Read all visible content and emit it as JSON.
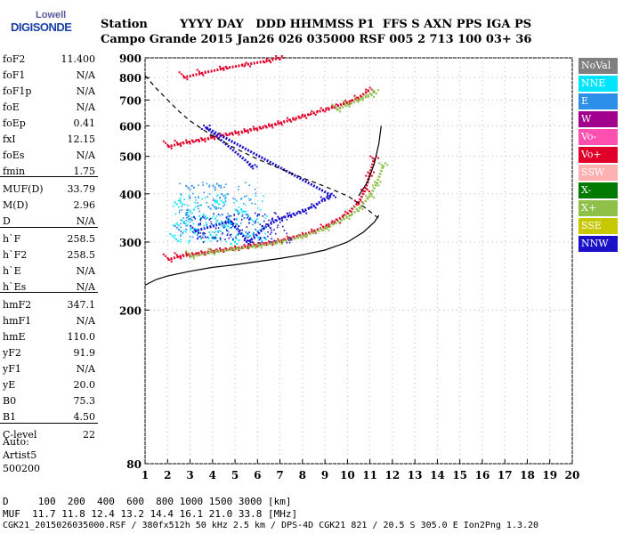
{
  "logo": {
    "top": "Lowell",
    "main": "DIGISONDE"
  },
  "header": {
    "row1": "Station        YYYY DAY   DDD HHMMSS P1  FFS S AXN PPS IGA PS",
    "row2": "Campo Grande 2015 Jan26 026 035000 RSF 005 2 713 100 03+ 36"
  },
  "params": [
    {
      "name": "foF2",
      "value": "11.400"
    },
    {
      "name": "foF1",
      "value": "N/A"
    },
    {
      "name": "foF1p",
      "value": "N/A"
    },
    {
      "name": "foE",
      "value": "N/A"
    },
    {
      "name": "foEp",
      "value": "0.41"
    },
    {
      "name": "fxI",
      "value": "12.15"
    },
    {
      "name": "foEs",
      "value": "N/A"
    },
    {
      "name": "fmin",
      "value": "1.75"
    },
    {
      "name": "MUF(D)",
      "value": "33.79"
    },
    {
      "name": "M(D)",
      "value": "2.96"
    },
    {
      "name": "D",
      "value": "N/A"
    },
    {
      "name": "h`F",
      "value": "258.5"
    },
    {
      "name": "h`F2",
      "value": "258.5"
    },
    {
      "name": "h`E",
      "value": "N/A"
    },
    {
      "name": "h`Es",
      "value": "N/A"
    },
    {
      "name": "hmF2",
      "value": "347.1"
    },
    {
      "name": "hmF1",
      "value": "N/A"
    },
    {
      "name": "hmE",
      "value": "110.0"
    },
    {
      "name": "yF2",
      "value": "91.9"
    },
    {
      "name": "yF1",
      "value": "N/A"
    },
    {
      "name": "yE",
      "value": "20.0"
    },
    {
      "name": "B0",
      "value": "75.3"
    },
    {
      "name": "B1",
      "value": "4.50"
    },
    {
      "name": "C-level",
      "value": "22"
    }
  ],
  "autoscaling": {
    "line1": "Auto:",
    "line2": "Artist5",
    "line3": "500200"
  },
  "footer": {
    "d_row": "D     100  200  400  600  800 1000 1500 3000 [km]",
    "muf_row": "MUF  11.7 11.8 12.4 13.2 14.4 16.1 21.0 33.8 [MHz]",
    "file_row": "CGK21_2015026035000.RSF / 380fx512h 50 kHz 2.5 km / DPS-4D CGK21 821 / 20.5 S 305.0 E Ion2Png 1.3.20"
  },
  "legend": [
    {
      "label": "NoVal",
      "color": "#808080",
      "text_color": "#ffffff"
    },
    {
      "label": "NNE",
      "color": "#00e5ff",
      "text_color": "#ffffff"
    },
    {
      "label": "E",
      "color": "#2d8fe8",
      "text_color": "#ffffff"
    },
    {
      "label": "W",
      "color": "#a0008c",
      "text_color": "#ffffff"
    },
    {
      "label": "Vo-",
      "color": "#ff4fb0",
      "text_color": "#ffffff"
    },
    {
      "label": "Vo+",
      "color": "#e0002a",
      "text_color": "#ffffff"
    },
    {
      "label": "SSW",
      "color": "#ffb0b0",
      "text_color": "#ffffff"
    },
    {
      "label": "X-",
      "color": "#007a00",
      "text_color": "#ffffff"
    },
    {
      "label": "X+",
      "color": "#8fc04a",
      "text_color": "#ffffff"
    },
    {
      "label": "SSE",
      "color": "#c8c800",
      "text_color": "#ffffff"
    },
    {
      "label": "NNW",
      "color": "#1a10c8",
      "text_color": "#ffffff"
    }
  ],
  "chart_data": {
    "type": "scatter",
    "title": "",
    "xlabel": "",
    "ylabel": "",
    "xlim": [
      1,
      20
    ],
    "ylim": [
      80,
      900
    ],
    "yscale": "log",
    "x_ticks": [
      1,
      2,
      3,
      4,
      5,
      6,
      7,
      8,
      9,
      10,
      11,
      12,
      13,
      14,
      15,
      16,
      17,
      18,
      19,
      20
    ],
    "y_ticks": [
      80,
      200,
      300,
      400,
      500,
      600,
      700,
      800,
      900
    ],
    "grid": true,
    "series": [
      {
        "name": "Vo+",
        "color": "#e0002a",
        "points": [
          [
            2.0,
            270
          ],
          [
            2.5,
            275
          ],
          [
            3.0,
            278
          ],
          [
            3.5,
            281
          ],
          [
            4.0,
            284
          ],
          [
            4.5,
            286
          ],
          [
            5.0,
            289
          ],
          [
            5.5,
            292
          ],
          [
            6.0,
            295
          ],
          [
            6.5,
            298
          ],
          [
            7.0,
            302
          ],
          [
            7.5,
            307
          ],
          [
            8.0,
            313
          ],
          [
            8.5,
            320
          ],
          [
            9.0,
            329
          ],
          [
            9.5,
            340
          ],
          [
            10.0,
            356
          ],
          [
            10.5,
            380
          ],
          [
            10.8,
            410
          ],
          [
            11.0,
            450
          ],
          [
            11.2,
            495
          ]
        ]
      },
      {
        "name": "Vo+",
        "color": "#e0002a",
        "points": [
          [
            2.0,
            530
          ],
          [
            2.5,
            538
          ],
          [
            3.0,
            545
          ],
          [
            3.5,
            552
          ],
          [
            4.0,
            560
          ],
          [
            4.5,
            567
          ],
          [
            5.0,
            575
          ],
          [
            5.5,
            582
          ],
          [
            6.0,
            590
          ],
          [
            6.5,
            600
          ],
          [
            7.0,
            610
          ],
          [
            7.5,
            622
          ],
          [
            8.0,
            635
          ],
          [
            8.5,
            648
          ],
          [
            9.0,
            660
          ],
          [
            9.5,
            675
          ],
          [
            10.0,
            690
          ],
          [
            10.5,
            710
          ],
          [
            11.0,
            745
          ]
        ]
      },
      {
        "name": "Vo+",
        "color": "#e0002a",
        "points": [
          [
            2.7,
            800
          ],
          [
            3.5,
            820
          ],
          [
            4.5,
            845
          ],
          [
            5.5,
            865
          ],
          [
            6.5,
            885
          ],
          [
            7.0,
            900
          ]
        ]
      },
      {
        "name": "X+",
        "color": "#8fc04a",
        "points": [
          [
            3.0,
            275
          ],
          [
            4.0,
            282
          ],
          [
            5.0,
            288
          ],
          [
            6.0,
            293
          ],
          [
            7.0,
            300
          ],
          [
            8.0,
            310
          ],
          [
            9.0,
            325
          ],
          [
            10.0,
            348
          ],
          [
            10.5,
            365
          ],
          [
            11.0,
            395
          ],
          [
            11.3,
            425
          ],
          [
            11.6,
            475
          ]
        ]
      },
      {
        "name": "X+",
        "color": "#8fc04a",
        "points": [
          [
            9.5,
            660
          ],
          [
            10.0,
            680
          ],
          [
            10.5,
            700
          ],
          [
            11.0,
            720
          ],
          [
            11.2,
            735
          ]
        ]
      },
      {
        "name": "NNE",
        "color": "#00e5ff",
        "points": [
          [
            2.3,
            305
          ],
          [
            2.8,
            335
          ],
          [
            3.2,
            320
          ],
          [
            3.6,
            350
          ],
          [
            4.0,
            310
          ],
          [
            4.3,
            380
          ],
          [
            4.6,
            330
          ],
          [
            5.0,
            300
          ],
          [
            5.2,
            360
          ],
          [
            5.5,
            315
          ],
          [
            5.8,
            340
          ],
          [
            6.2,
            305
          ],
          [
            2.5,
            380
          ],
          [
            3.0,
            360
          ]
        ]
      },
      {
        "name": "E",
        "color": "#2d8fe8",
        "points": [
          [
            2.5,
            320
          ],
          [
            3.0,
            345
          ],
          [
            3.5,
            310
          ],
          [
            4.0,
            370
          ],
          [
            4.5,
            395
          ],
          [
            5.0,
            330
          ],
          [
            5.5,
            350
          ],
          [
            6.0,
            320
          ],
          [
            3.0,
            415
          ],
          [
            4.2,
            420
          ]
        ]
      },
      {
        "name": "NNW",
        "color": "#1a10c8",
        "points": [
          [
            3.2,
            320
          ],
          [
            4.8,
            340
          ],
          [
            5.6,
            300
          ],
          [
            6.4,
            330
          ],
          [
            7.0,
            345
          ],
          [
            7.5,
            352
          ],
          [
            8.0,
            360
          ],
          [
            8.5,
            372
          ],
          [
            9.0,
            388
          ],
          [
            9.3,
            396
          ],
          [
            3.7,
            595
          ],
          [
            5.8,
            470
          ]
        ]
      },
      {
        "name": "MUF profile (dashed)",
        "color": "#000000",
        "points": [
          [
            1.0,
            810
          ],
          [
            1.5,
            750
          ],
          [
            2.0,
            700
          ],
          [
            2.5,
            655
          ],
          [
            3.0,
            618
          ],
          [
            4.0,
            565
          ],
          [
            5.0,
            525
          ],
          [
            6.0,
            492
          ],
          [
            7.0,
            465
          ],
          [
            8.0,
            440
          ],
          [
            9.0,
            418
          ],
          [
            10.0,
            395
          ],
          [
            10.6,
            375
          ],
          [
            11.0,
            360
          ],
          [
            11.4,
            345
          ]
        ]
      },
      {
        "name": "Profile (solid)",
        "color": "#000000",
        "points": [
          [
            1.0,
            232
          ],
          [
            1.5,
            240
          ],
          [
            2.0,
            245
          ],
          [
            3.0,
            252
          ],
          [
            4.0,
            258
          ],
          [
            5.0,
            262
          ],
          [
            6.0,
            267
          ],
          [
            7.0,
            272
          ],
          [
            8.0,
            278
          ],
          [
            9.0,
            286
          ],
          [
            10.0,
            300
          ],
          [
            10.7,
            318
          ],
          [
            11.2,
            338
          ],
          [
            11.4,
            352
          ]
        ]
      },
      {
        "name": "Profile upper",
        "color": "#000000",
        "points": [
          [
            10.5,
            395
          ],
          [
            10.9,
            430
          ],
          [
            11.2,
            480
          ],
          [
            11.4,
            540
          ],
          [
            11.5,
            600
          ]
        ]
      }
    ]
  }
}
